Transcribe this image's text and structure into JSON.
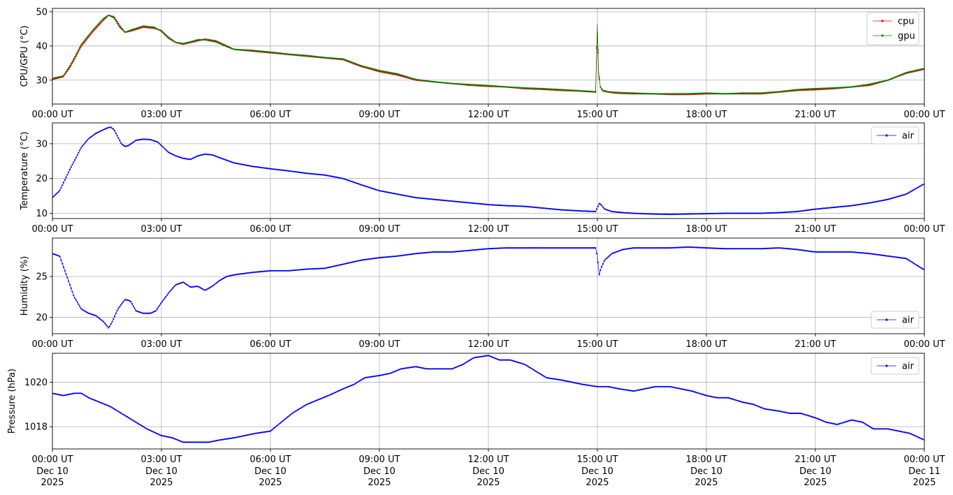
{
  "chart_data": [
    {
      "type": "line",
      "ylabel": "CPU/GPU (°C)",
      "xlim": [
        0,
        24
      ],
      "ylim": [
        23,
        51
      ],
      "yticks": [
        30,
        40,
        50
      ],
      "xticks": [
        "00:00 UT",
        "03:00 UT",
        "06:00 UT",
        "09:00 UT",
        "12:00 UT",
        "15:00 UT",
        "18:00 UT",
        "21:00 UT",
        "00:00 UT"
      ],
      "grid": true,
      "legend": "top-right",
      "series": [
        {
          "name": "cpu",
          "color": "#ff0000",
          "x": [
            0,
            0.3,
            0.5,
            0.8,
            1.1,
            1.4,
            1.55,
            1.7,
            1.85,
            2.0,
            2.2,
            2.5,
            2.8,
            3.0,
            3.2,
            3.4,
            3.6,
            3.8,
            4.0,
            4.2,
            4.5,
            4.8,
            5.0,
            5.5,
            6.0,
            6.5,
            7.0,
            7.5,
            8.0,
            8.5,
            9.0,
            9.5,
            10.0,
            10.5,
            11.0,
            11.5,
            12.0,
            12.5,
            13.0,
            13.5,
            14.0,
            14.5,
            14.95,
            15.0,
            15.03,
            15.08,
            15.15,
            15.3,
            15.5,
            16.0,
            16.5,
            17.0,
            17.5,
            18.0,
            18.5,
            19.0,
            19.5,
            20.0,
            20.5,
            21.0,
            21.5,
            22.0,
            22.5,
            23.0,
            23.5,
            24.0
          ],
          "values": [
            30.2,
            31,
            34,
            40,
            44,
            47.5,
            49,
            48.5,
            46,
            44,
            44.5,
            45.5,
            45.2,
            44.5,
            42.5,
            41,
            40.5,
            41,
            41.5,
            42,
            41.5,
            40,
            39,
            38.5,
            38,
            37.5,
            37,
            36.5,
            36,
            34,
            32.5,
            31.5,
            30,
            29.5,
            29,
            28.5,
            28.2,
            28,
            27.5,
            27.3,
            27,
            26.8,
            26.5,
            46,
            32,
            28,
            26.8,
            26.5,
            26.2,
            26,
            26,
            25.8,
            25.8,
            26,
            26,
            26,
            26,
            26.5,
            27,
            27.2,
            27.5,
            28,
            28.5,
            30,
            32,
            33.2
          ]
        },
        {
          "name": "gpu",
          "color": "#008000",
          "x": [
            0,
            0.3,
            0.5,
            0.8,
            1.1,
            1.4,
            1.55,
            1.7,
            1.85,
            2.0,
            2.2,
            2.5,
            2.8,
            3.0,
            3.2,
            3.4,
            3.6,
            3.8,
            4.0,
            4.2,
            4.5,
            4.8,
            5.0,
            5.5,
            6.0,
            6.5,
            7.0,
            7.5,
            8.0,
            8.5,
            9.0,
            9.5,
            10.0,
            10.5,
            11.0,
            11.5,
            12.0,
            12.5,
            13.0,
            13.5,
            14.0,
            14.5,
            14.95,
            15.0,
            15.03,
            15.08,
            15.15,
            15.3,
            15.5,
            16.0,
            16.5,
            17.0,
            17.5,
            18.0,
            18.5,
            19.0,
            19.5,
            20.0,
            20.5,
            21.0,
            21.5,
            22.0,
            22.5,
            23.0,
            23.5,
            24.0
          ],
          "values": [
            30.5,
            31.2,
            34.5,
            40.5,
            44.5,
            48,
            49,
            48.2,
            45.5,
            44,
            44.8,
            45.8,
            45.5,
            44.3,
            42.2,
            41,
            40.7,
            41.2,
            41.8,
            41.8,
            41.2,
            39.8,
            39,
            38.7,
            38.2,
            37.6,
            37.2,
            36.6,
            36.2,
            34.2,
            32.8,
            31.8,
            30.2,
            29.5,
            29,
            28.7,
            28.4,
            28,
            27.7,
            27.5,
            27.2,
            26.9,
            26.6,
            46.5,
            33,
            28,
            27,
            26.6,
            26.4,
            26.2,
            26,
            26,
            26,
            26.2,
            26,
            26.2,
            26.2,
            26.6,
            27.2,
            27.5,
            27.7,
            28,
            28.8,
            30,
            32.2,
            33.4
          ]
        }
      ]
    },
    {
      "type": "line",
      "ylabel": "Temperature (°C)",
      "xlim": [
        0,
        24
      ],
      "ylim": [
        8.5,
        36
      ],
      "yticks": [
        10,
        20,
        30
      ],
      "xticks": [
        "00:00 UT",
        "03:00 UT",
        "06:00 UT",
        "09:00 UT",
        "12:00 UT",
        "15:00 UT",
        "18:00 UT",
        "21:00 UT",
        "00:00 UT"
      ],
      "grid": true,
      "legend": "top-right",
      "series": [
        {
          "name": "air",
          "color": "#0000ff",
          "x": [
            0,
            0.2,
            0.5,
            0.8,
            1.0,
            1.2,
            1.4,
            1.5,
            1.6,
            1.7,
            1.8,
            1.9,
            2.0,
            2.1,
            2.3,
            2.5,
            2.7,
            2.9,
            3.0,
            3.2,
            3.4,
            3.6,
            3.8,
            4.0,
            4.2,
            4.4,
            4.6,
            5.0,
            5.5,
            6.0,
            6.5,
            7.0,
            7.5,
            8.0,
            8.5,
            9.0,
            9.5,
            10.0,
            10.5,
            11.0,
            11.5,
            12.0,
            12.5,
            13.0,
            13.5,
            14.0,
            14.5,
            14.95,
            15.05,
            15.1,
            15.2,
            15.4,
            15.7,
            16.0,
            16.5,
            17.0,
            17.5,
            18.0,
            18.5,
            19.0,
            19.5,
            20.0,
            20.5,
            21.0,
            21.5,
            22.0,
            22.5,
            23.0,
            23.5,
            24.0
          ],
          "values": [
            14.5,
            16.5,
            23,
            29,
            31.5,
            33,
            34,
            34.5,
            34.8,
            34,
            32,
            30,
            29.2,
            29.5,
            31,
            31.3,
            31.2,
            30.5,
            29.5,
            27.5,
            26.5,
            25.8,
            25.5,
            26.5,
            27,
            26.8,
            26,
            24.5,
            23.5,
            22.8,
            22.2,
            21.5,
            21,
            20,
            18.2,
            16.5,
            15.5,
            14.5,
            14,
            13.5,
            13,
            12.5,
            12.2,
            12,
            11.5,
            11,
            10.7,
            10.5,
            12.8,
            12.5,
            11.2,
            10.5,
            10.2,
            10,
            9.8,
            9.7,
            9.8,
            9.9,
            10,
            10,
            10,
            10.2,
            10.5,
            11.2,
            11.7,
            12.2,
            13,
            14,
            15.5,
            18.5
          ]
        }
      ]
    },
    {
      "type": "line",
      "ylabel": "Humidity (%)",
      "xlim": [
        0,
        24
      ],
      "ylim": [
        18,
        29.7
      ],
      "yticks": [
        20,
        25
      ],
      "xticks": [
        "00:00 UT",
        "03:00 UT",
        "06:00 UT",
        "09:00 UT",
        "12:00 UT",
        "15:00 UT",
        "18:00 UT",
        "21:00 UT",
        "00:00 UT"
      ],
      "grid": true,
      "legend": "bottom-right",
      "series": [
        {
          "name": "air",
          "color": "#0000ff",
          "x": [
            0,
            0.2,
            0.4,
            0.6,
            0.8,
            1.0,
            1.2,
            1.4,
            1.55,
            1.65,
            1.8,
            2.0,
            2.15,
            2.3,
            2.5,
            2.7,
            2.85,
            3.0,
            3.2,
            3.4,
            3.6,
            3.8,
            4.0,
            4.2,
            4.4,
            4.6,
            4.8,
            5.0,
            5.5,
            6.0,
            6.5,
            7.0,
            7.5,
            8.0,
            8.5,
            9.0,
            9.5,
            10.0,
            10.5,
            11.0,
            11.5,
            12.0,
            12.5,
            13.0,
            13.5,
            14.0,
            14.5,
            14.95,
            15.0,
            15.05,
            15.1,
            15.2,
            15.4,
            15.7,
            16.0,
            16.5,
            17.0,
            17.5,
            18.0,
            18.5,
            19.0,
            19.5,
            20.0,
            20.5,
            21.0,
            21.5,
            22.0,
            22.5,
            23.0,
            23.5,
            24.0
          ],
          "values": [
            27.8,
            27.5,
            25,
            22.5,
            21,
            20.5,
            20.2,
            19.5,
            18.7,
            19.5,
            21,
            22.2,
            22,
            20.8,
            20.5,
            20.5,
            20.8,
            21.8,
            23,
            24,
            24.3,
            23.7,
            23.8,
            23.3,
            23.8,
            24.5,
            25,
            25.2,
            25.5,
            25.7,
            25.7,
            25.9,
            26,
            26.5,
            27,
            27.3,
            27.5,
            27.8,
            28,
            28,
            28.2,
            28.4,
            28.5,
            28.5,
            28.5,
            28.5,
            28.5,
            28.5,
            27.5,
            25.2,
            26,
            27,
            27.8,
            28.3,
            28.5,
            28.5,
            28.5,
            28.6,
            28.5,
            28.4,
            28.4,
            28.4,
            28.5,
            28.3,
            28,
            28,
            28,
            27.8,
            27.5,
            27.2,
            25.8
          ]
        }
      ]
    },
    {
      "type": "line",
      "ylabel": "Pressure (hPa)",
      "xlim": [
        0,
        24
      ],
      "ylim": [
        1017,
        1021.3
      ],
      "yticks": [
        1018,
        1020
      ],
      "xticks": [
        "00:00 UT",
        "03:00 UT",
        "06:00 UT",
        "09:00 UT",
        "12:00 UT",
        "15:00 UT",
        "18:00 UT",
        "21:00 UT",
        "00:00 UT"
      ],
      "xtick_dates": [
        "Dec 10\n2025",
        "Dec 10\n2025",
        "Dec 10\n2025",
        "Dec 10\n2025",
        "Dec 10\n2025",
        "Dec 10\n2025",
        "Dec 10\n2025",
        "Dec 10\n2025",
        "Dec 11\n2025"
      ],
      "grid": true,
      "legend": "top-right",
      "series": [
        {
          "name": "air",
          "color": "#0000ff",
          "x": [
            0,
            0.3,
            0.6,
            0.8,
            1.0,
            1.3,
            1.6,
            2.0,
            2.3,
            2.6,
            3.0,
            3.3,
            3.6,
            4.0,
            4.3,
            4.6,
            5.0,
            5.3,
            5.6,
            6.0,
            6.3,
            6.6,
            7.0,
            7.3,
            7.6,
            8.0,
            8.3,
            8.6,
            9.0,
            9.3,
            9.6,
            10.0,
            10.3,
            10.6,
            11.0,
            11.3,
            11.6,
            12.0,
            12.3,
            12.6,
            13.0,
            13.3,
            13.6,
            14.0,
            14.3,
            14.6,
            15.0,
            15.3,
            15.6,
            16.0,
            16.3,
            16.6,
            17.0,
            17.3,
            17.6,
            18.0,
            18.3,
            18.6,
            19.0,
            19.3,
            19.6,
            20.0,
            20.3,
            20.6,
            21.0,
            21.3,
            21.6,
            22.0,
            22.3,
            22.6,
            23.0,
            23.3,
            23.6,
            24.0
          ],
          "values": [
            1019.5,
            1019.4,
            1019.5,
            1019.5,
            1019.3,
            1019.1,
            1018.9,
            1018.5,
            1018.2,
            1017.9,
            1017.6,
            1017.5,
            1017.3,
            1017.3,
            1017.3,
            1017.4,
            1017.5,
            1017.6,
            1017.7,
            1017.8,
            1018.2,
            1018.6,
            1019.0,
            1019.2,
            1019.4,
            1019.7,
            1019.9,
            1020.2,
            1020.3,
            1020.4,
            1020.6,
            1020.7,
            1020.6,
            1020.6,
            1020.6,
            1020.8,
            1021.1,
            1021.2,
            1021.0,
            1021.0,
            1020.8,
            1020.5,
            1020.2,
            1020.1,
            1020.0,
            1019.9,
            1019.8,
            1019.8,
            1019.7,
            1019.6,
            1019.7,
            1019.8,
            1019.8,
            1019.7,
            1019.6,
            1019.4,
            1019.3,
            1019.3,
            1019.1,
            1019.0,
            1018.8,
            1018.7,
            1018.6,
            1018.6,
            1018.4,
            1018.2,
            1018.1,
            1018.3,
            1018.2,
            1017.9,
            1017.9,
            1017.8,
            1017.7,
            1017.4
          ]
        }
      ]
    }
  ]
}
